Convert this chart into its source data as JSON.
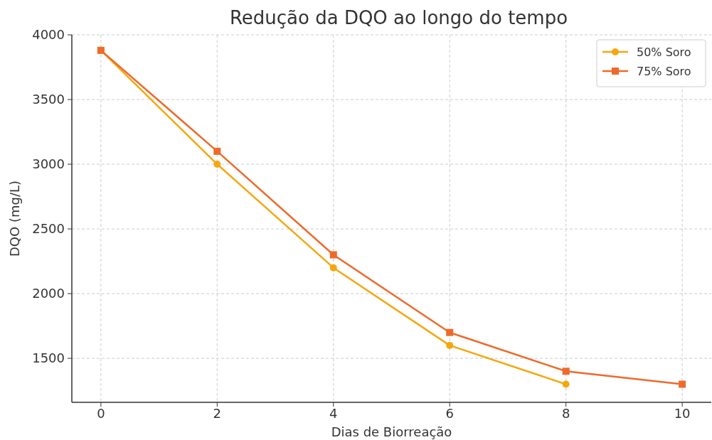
{
  "chart_data": {
    "type": "line",
    "title": "Redução da DQO ao longo do tempo",
    "xlabel": "Dias de Biorreação",
    "ylabel": "DQO (mg/L)",
    "xlim": [
      -0.5,
      10.5
    ],
    "xticks": [
      0,
      2,
      4,
      6,
      8,
      10
    ],
    "ylim": [
      1160,
      4000
    ],
    "yticks": [
      1500,
      2000,
      2500,
      3000,
      3500,
      4000
    ],
    "grid": true,
    "legend": "top right",
    "line_style": "solid",
    "series": [
      {
        "name": "50% Soro",
        "color": "#f5a70f",
        "marker": "circle",
        "x": [
          0,
          2,
          4,
          6,
          8
        ],
        "values": [
          3880,
          3000,
          2200,
          1600,
          1300
        ]
      },
      {
        "name": "75% Soro",
        "color": "#ee6a2a",
        "marker": "square",
        "x": [
          0,
          2,
          4,
          6,
          8,
          10
        ],
        "values": [
          3880,
          3100,
          2300,
          1700,
          1400,
          1300
        ]
      }
    ]
  }
}
